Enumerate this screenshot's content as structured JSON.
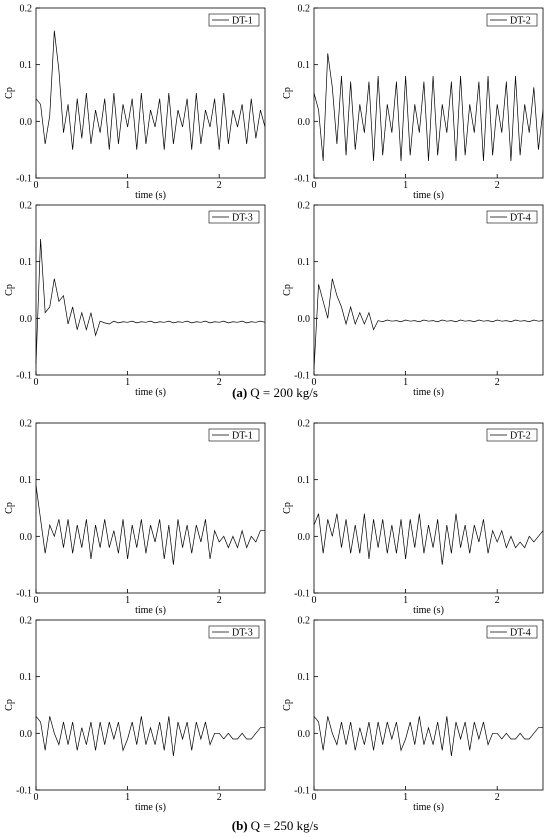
{
  "chart_data": [
    {
      "type": "line",
      "xlabel": "time (s)",
      "ylabel": "Cp",
      "xlim": [
        0,
        2.5
      ],
      "ylim": [
        -0.1,
        0.2
      ],
      "xticks": [
        0,
        1,
        2
      ],
      "yticks": [
        -0.1,
        {
          "value": 0,
          "label": "0.0"
        },
        0.1,
        0.2
      ],
      "legend": "upper right",
      "x": [
        0,
        0.05,
        0.1,
        0.15,
        0.2,
        0.25,
        0.3,
        0.35,
        0.4,
        0.45,
        0.5,
        0.55,
        0.6,
        0.65,
        0.7,
        0.75,
        0.8,
        0.85,
        0.9,
        0.95,
        1,
        1.05,
        1.1,
        1.15,
        1.2,
        1.25,
        1.3,
        1.35,
        1.4,
        1.45,
        1.5,
        1.55,
        1.6,
        1.65,
        1.7,
        1.75,
        1.8,
        1.85,
        1.9,
        1.95,
        2,
        2.05,
        2.1,
        2.15,
        2.2,
        2.25,
        2.3,
        2.35,
        2.4,
        2.45,
        2.5
      ],
      "series": [
        {
          "name": "DT-1",
          "color": "#000000",
          "values": [
            0.04,
            0.03,
            -0.04,
            0.01,
            0.16,
            0.09,
            -0.02,
            0.03,
            -0.05,
            0.04,
            -0.03,
            0.05,
            -0.04,
            0.02,
            -0.02,
            0.04,
            -0.05,
            0.05,
            -0.04,
            0.03,
            -0.01,
            0.04,
            -0.05,
            0.05,
            -0.04,
            0.02,
            -0.01,
            0.04,
            -0.05,
            0.05,
            -0.04,
            0.02,
            -0.01,
            0.04,
            -0.05,
            0.05,
            -0.04,
            0.02,
            -0.01,
            0.04,
            -0.05,
            0.05,
            -0.04,
            0.02,
            -0.01,
            0.03,
            -0.04,
            0.04,
            -0.03,
            0.02,
            -0.01
          ]
        }
      ]
    },
    {
      "type": "line",
      "xlabel": "time (s)",
      "ylabel": "Cp",
      "xlim": [
        0,
        2.5
      ],
      "ylim": [
        -0.1,
        0.2
      ],
      "xticks": [
        0,
        1,
        2
      ],
      "yticks": [
        -0.1,
        {
          "value": 0,
          "label": "0.0"
        },
        0.1,
        0.2
      ],
      "legend": "upper right",
      "x": [
        0,
        0.05,
        0.1,
        0.15,
        0.2,
        0.25,
        0.3,
        0.35,
        0.4,
        0.45,
        0.5,
        0.55,
        0.6,
        0.65,
        0.7,
        0.75,
        0.8,
        0.85,
        0.9,
        0.95,
        1,
        1.05,
        1.1,
        1.15,
        1.2,
        1.25,
        1.3,
        1.35,
        1.4,
        1.45,
        1.5,
        1.55,
        1.6,
        1.65,
        1.7,
        1.75,
        1.8,
        1.85,
        1.9,
        1.95,
        2,
        2.05,
        2.1,
        2.15,
        2.2,
        2.25,
        2.3,
        2.35,
        2.4,
        2.45,
        2.5
      ],
      "series": [
        {
          "name": "DT-2",
          "color": "#000000",
          "values": [
            0.05,
            0.02,
            -0.07,
            0.12,
            0.06,
            -0.04,
            0.08,
            -0.06,
            0.07,
            -0.05,
            0.03,
            -0.02,
            0.07,
            -0.07,
            0.08,
            -0.06,
            0.03,
            -0.02,
            0.07,
            -0.07,
            0.08,
            -0.06,
            0.03,
            -0.02,
            0.07,
            -0.07,
            0.08,
            -0.06,
            0.03,
            -0.02,
            0.07,
            -0.07,
            0.08,
            -0.06,
            0.03,
            -0.02,
            0.07,
            -0.07,
            0.08,
            -0.06,
            0.03,
            -0.02,
            0.07,
            -0.07,
            0.08,
            -0.06,
            0.03,
            -0.02,
            0.06,
            -0.05,
            0.02
          ]
        }
      ]
    },
    {
      "type": "line",
      "xlabel": "time (s)",
      "ylabel": "Cp",
      "xlim": [
        0,
        2.5
      ],
      "ylim": [
        -0.1,
        0.2
      ],
      "xticks": [
        0,
        1,
        2
      ],
      "yticks": [
        -0.1,
        {
          "value": 0,
          "label": "0.0"
        },
        0.1,
        0.2
      ],
      "legend": "upper right",
      "x": [
        0,
        0.05,
        0.1,
        0.15,
        0.2,
        0.25,
        0.3,
        0.35,
        0.4,
        0.45,
        0.5,
        0.55,
        0.6,
        0.65,
        0.7,
        0.75,
        0.8,
        0.85,
        0.9,
        0.95,
        1,
        1.05,
        1.1,
        1.15,
        1.2,
        1.25,
        1.3,
        1.35,
        1.4,
        1.45,
        1.5,
        1.55,
        1.6,
        1.65,
        1.7,
        1.75,
        1.8,
        1.85,
        1.9,
        1.95,
        2,
        2.05,
        2.1,
        2.15,
        2.2,
        2.25,
        2.3,
        2.35,
        2.4,
        2.45,
        2.5
      ],
      "series": [
        {
          "name": "DT-3",
          "color": "#000000",
          "values": [
            -0.08,
            0.14,
            0.01,
            0.02,
            0.07,
            0.03,
            0.04,
            -0.01,
            0.02,
            -0.02,
            0.01,
            -0.02,
            0.01,
            -0.03,
            -0.005,
            -0.008,
            -0.01,
            -0.005,
            -0.008,
            -0.006,
            -0.007,
            -0.005,
            -0.008,
            -0.006,
            -0.007,
            -0.005,
            -0.008,
            -0.006,
            -0.007,
            -0.005,
            -0.008,
            -0.006,
            -0.007,
            -0.005,
            -0.008,
            -0.006,
            -0.007,
            -0.005,
            -0.008,
            -0.006,
            -0.007,
            -0.005,
            -0.008,
            -0.006,
            -0.007,
            -0.005,
            -0.008,
            -0.006,
            -0.007,
            -0.005,
            -0.007
          ]
        }
      ]
    },
    {
      "type": "line",
      "xlabel": "time (s)",
      "ylabel": "Cp",
      "xlim": [
        0,
        2.5
      ],
      "ylim": [
        -0.1,
        0.2
      ],
      "xticks": [
        0,
        1,
        2
      ],
      "yticks": [
        -0.1,
        {
          "value": 0,
          "label": "0.0"
        },
        0.1,
        0.2
      ],
      "legend": "upper right",
      "x": [
        0,
        0.05,
        0.1,
        0.15,
        0.2,
        0.25,
        0.3,
        0.35,
        0.4,
        0.45,
        0.5,
        0.55,
        0.6,
        0.65,
        0.7,
        0.75,
        0.8,
        0.85,
        0.9,
        0.95,
        1,
        1.05,
        1.1,
        1.15,
        1.2,
        1.25,
        1.3,
        1.35,
        1.4,
        1.45,
        1.5,
        1.55,
        1.6,
        1.65,
        1.7,
        1.75,
        1.8,
        1.85,
        1.9,
        1.95,
        2,
        2.05,
        2.1,
        2.15,
        2.2,
        2.25,
        2.3,
        2.35,
        2.4,
        2.45,
        2.5
      ],
      "series": [
        {
          "name": "DT-4",
          "color": "#000000",
          "values": [
            -0.09,
            0.06,
            0.03,
            0.0,
            0.07,
            0.04,
            0.02,
            -0.01,
            0.02,
            -0.01,
            0.01,
            -0.01,
            0.01,
            -0.02,
            -0.004,
            -0.006,
            -0.003,
            -0.005,
            -0.004,
            -0.006,
            -0.003,
            -0.005,
            -0.004,
            -0.006,
            -0.003,
            -0.005,
            -0.004,
            -0.006,
            -0.003,
            -0.005,
            -0.004,
            -0.006,
            -0.003,
            -0.005,
            -0.004,
            -0.006,
            -0.003,
            -0.005,
            -0.004,
            -0.006,
            -0.003,
            -0.005,
            -0.004,
            -0.006,
            -0.003,
            -0.005,
            -0.004,
            -0.006,
            -0.003,
            -0.005,
            -0.004
          ]
        }
      ]
    },
    {
      "type": "line",
      "xlabel": "time (s)",
      "ylabel": "Cp",
      "xlim": [
        0,
        2.5
      ],
      "ylim": [
        -0.1,
        0.2
      ],
      "xticks": [
        0,
        1,
        2
      ],
      "yticks": [
        -0.1,
        {
          "value": 0,
          "label": "0.0"
        },
        0.1,
        0.2
      ],
      "legend": "upper right",
      "x": [
        0,
        0.05,
        0.1,
        0.15,
        0.2,
        0.25,
        0.3,
        0.35,
        0.4,
        0.45,
        0.5,
        0.55,
        0.6,
        0.65,
        0.7,
        0.75,
        0.8,
        0.85,
        0.9,
        0.95,
        1,
        1.05,
        1.1,
        1.15,
        1.2,
        1.25,
        1.3,
        1.35,
        1.4,
        1.45,
        1.5,
        1.55,
        1.6,
        1.65,
        1.7,
        1.75,
        1.8,
        1.85,
        1.9,
        1.95,
        2,
        2.05,
        2.1,
        2.15,
        2.2,
        2.25,
        2.3,
        2.35,
        2.4,
        2.45,
        2.5
      ],
      "series": [
        {
          "name": "DT-1",
          "color": "#000000",
          "values": [
            0.09,
            0.03,
            -0.03,
            0.02,
            0.0,
            0.03,
            -0.02,
            0.03,
            -0.03,
            0.02,
            -0.02,
            0.03,
            -0.04,
            0.02,
            -0.02,
            0.03,
            -0.02,
            0.01,
            -0.03,
            0.03,
            -0.04,
            0.02,
            -0.02,
            0.03,
            -0.03,
            0.02,
            -0.01,
            0.03,
            -0.04,
            0.02,
            -0.05,
            0.03,
            -0.02,
            0.02,
            -0.03,
            0.02,
            -0.01,
            0.03,
            -0.04,
            0.01,
            -0.01,
            0.0,
            -0.02,
            0.0,
            -0.02,
            0.01,
            -0.02,
            0.0,
            -0.01,
            0.01,
            0.01
          ]
        }
      ]
    },
    {
      "type": "line",
      "xlabel": "time (s)",
      "ylabel": "Cp",
      "xlim": [
        0,
        2.5
      ],
      "ylim": [
        -0.1,
        0.2
      ],
      "xticks": [
        0,
        1,
        2
      ],
      "yticks": [
        -0.1,
        {
          "value": 0,
          "label": "0.0"
        },
        0.1,
        0.2
      ],
      "legend": "upper right",
      "x": [
        0,
        0.05,
        0.1,
        0.15,
        0.2,
        0.25,
        0.3,
        0.35,
        0.4,
        0.45,
        0.5,
        0.55,
        0.6,
        0.65,
        0.7,
        0.75,
        0.8,
        0.85,
        0.9,
        0.95,
        1,
        1.05,
        1.1,
        1.15,
        1.2,
        1.25,
        1.3,
        1.35,
        1.4,
        1.45,
        1.5,
        1.55,
        1.6,
        1.65,
        1.7,
        1.75,
        1.8,
        1.85,
        1.9,
        1.95,
        2,
        2.05,
        2.1,
        2.15,
        2.2,
        2.25,
        2.3,
        2.35,
        2.4,
        2.45,
        2.5
      ],
      "series": [
        {
          "name": "DT-2",
          "color": "#000000",
          "values": [
            0.02,
            0.04,
            -0.03,
            0.03,
            0.0,
            0.04,
            -0.02,
            0.03,
            -0.03,
            0.02,
            -0.03,
            0.04,
            -0.04,
            0.03,
            -0.02,
            0.03,
            -0.03,
            0.02,
            -0.03,
            0.03,
            -0.04,
            0.03,
            -0.02,
            0.04,
            -0.03,
            0.02,
            -0.02,
            0.03,
            -0.05,
            0.02,
            -0.03,
            0.04,
            -0.02,
            0.02,
            -0.03,
            0.02,
            -0.01,
            0.03,
            -0.03,
            0.01,
            -0.01,
            0.01,
            -0.02,
            0.0,
            -0.02,
            -0.01,
            -0.02,
            0.0,
            -0.01,
            0.0,
            0.01
          ]
        }
      ]
    },
    {
      "type": "line",
      "xlabel": "time (s)",
      "ylabel": "Cp",
      "xlim": [
        0,
        2.5
      ],
      "ylim": [
        -0.1,
        0.2
      ],
      "xticks": [
        0,
        1,
        2
      ],
      "yticks": [
        -0.1,
        {
          "value": 0,
          "label": "0.0"
        },
        0.1,
        0.2
      ],
      "legend": "upper right",
      "x": [
        0,
        0.05,
        0.1,
        0.15,
        0.2,
        0.25,
        0.3,
        0.35,
        0.4,
        0.45,
        0.5,
        0.55,
        0.6,
        0.65,
        0.7,
        0.75,
        0.8,
        0.85,
        0.9,
        0.95,
        1,
        1.05,
        1.1,
        1.15,
        1.2,
        1.25,
        1.3,
        1.35,
        1.4,
        1.45,
        1.5,
        1.55,
        1.6,
        1.65,
        1.7,
        1.75,
        1.8,
        1.85,
        1.9,
        1.95,
        2,
        2.05,
        2.1,
        2.15,
        2.2,
        2.25,
        2.3,
        2.35,
        2.4,
        2.45,
        2.5
      ],
      "series": [
        {
          "name": "DT-3",
          "color": "#000000",
          "values": [
            0.03,
            0.02,
            -0.03,
            0.03,
            0.0,
            -0.02,
            0.02,
            -0.02,
            0.02,
            -0.03,
            0.01,
            -0.02,
            0.02,
            -0.03,
            0.02,
            -0.02,
            0.02,
            -0.01,
            0.02,
            -0.03,
            -0.01,
            0.02,
            -0.02,
            0.03,
            -0.02,
            0.01,
            -0.02,
            0.02,
            -0.03,
            0.03,
            -0.04,
            0.02,
            -0.01,
            0.02,
            -0.03,
            0.02,
            -0.01,
            0.02,
            -0.02,
            0.0,
            0.0,
            -0.01,
            0.0,
            -0.01,
            -0.01,
            0.0,
            -0.01,
            -0.01,
            0.0,
            0.01,
            0.01
          ]
        }
      ]
    },
    {
      "type": "line",
      "xlabel": "time (s)",
      "ylabel": "Cp",
      "xlim": [
        0,
        2.5
      ],
      "ylim": [
        -0.1,
        0.2
      ],
      "xticks": [
        0,
        1,
        2
      ],
      "yticks": [
        -0.1,
        {
          "value": 0,
          "label": "0.0"
        },
        0.1,
        0.2
      ],
      "legend": "upper right",
      "x": [
        0,
        0.05,
        0.1,
        0.15,
        0.2,
        0.25,
        0.3,
        0.35,
        0.4,
        0.45,
        0.5,
        0.55,
        0.6,
        0.65,
        0.7,
        0.75,
        0.8,
        0.85,
        0.9,
        0.95,
        1,
        1.05,
        1.1,
        1.15,
        1.2,
        1.25,
        1.3,
        1.35,
        1.4,
        1.45,
        1.5,
        1.55,
        1.6,
        1.65,
        1.7,
        1.75,
        1.8,
        1.85,
        1.9,
        1.95,
        2,
        2.05,
        2.1,
        2.15,
        2.2,
        2.25,
        2.3,
        2.35,
        2.4,
        2.45,
        2.5
      ],
      "series": [
        {
          "name": "DT-4",
          "color": "#000000",
          "values": [
            0.03,
            0.02,
            -0.03,
            0.03,
            0.0,
            -0.02,
            0.02,
            -0.02,
            0.02,
            -0.03,
            0.01,
            -0.02,
            0.02,
            -0.03,
            0.02,
            -0.02,
            0.02,
            -0.01,
            0.02,
            -0.03,
            -0.01,
            0.02,
            -0.02,
            0.03,
            -0.02,
            0.01,
            -0.02,
            0.02,
            -0.03,
            0.03,
            -0.04,
            0.02,
            -0.01,
            0.02,
            -0.03,
            0.02,
            -0.01,
            0.02,
            -0.02,
            0.0,
            0.0,
            -0.01,
            0.0,
            -0.01,
            -0.01,
            0.0,
            -0.01,
            -0.01,
            0.0,
            0.01,
            0.01
          ]
        }
      ]
    }
  ],
  "captions": [
    {
      "label": "(a)",
      "text": "Q = 200 kg/s"
    },
    {
      "label": "(b)",
      "text": "Q = 250 kg/s"
    }
  ]
}
